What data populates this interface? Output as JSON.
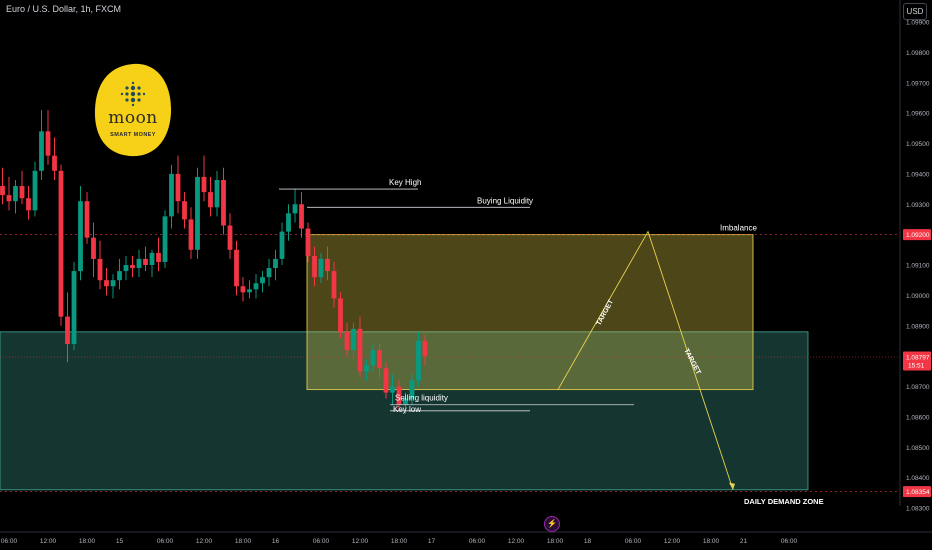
{
  "header": {
    "symbol_title": "Euro / U.S. Dollar, 1h, FXCM",
    "currency_label": "USD"
  },
  "logo": {
    "word": "moon",
    "subtitle": "SMART MONEY",
    "color": "#f7d117"
  },
  "chart_data": {
    "type": "candlestick",
    "instrument": "Euro / U.S. Dollar",
    "timeframe": "1h",
    "source": "FXCM",
    "y_axis": {
      "ticks": [
        1.083,
        1.084,
        1.085,
        1.086,
        1.087,
        1.088,
        1.089,
        1.09,
        1.091,
        1.092,
        1.093,
        1.094,
        1.095,
        1.096,
        1.097,
        1.098,
        1.099
      ],
      "labels": [
        "1.08300",
        "1.08400",
        "1.08500",
        "1.08600",
        "1.08700",
        "1.08800",
        "1.08900",
        "1.09000",
        "1.09100",
        "1.09200",
        "1.09300",
        "1.09400",
        "1.09500",
        "1.09600",
        "1.09700",
        "1.09800",
        "1.09900"
      ],
      "range": [
        1.0825,
        1.1
      ]
    },
    "x_axis": {
      "labels": [
        {
          "text": "06:00",
          "i": 2
        },
        {
          "text": "12:00",
          "i": 8
        },
        {
          "text": "18:00",
          "i": 14
        },
        {
          "text": "15",
          "i": 19
        },
        {
          "text": "06:00",
          "i": 26
        },
        {
          "text": "12:00",
          "i": 32
        },
        {
          "text": "18:00",
          "i": 38
        },
        {
          "text": "16",
          "i": 43
        },
        {
          "text": "06:00",
          "i": 50
        },
        {
          "text": "12:00",
          "i": 56
        },
        {
          "text": "18:00",
          "i": 62
        },
        {
          "text": "17",
          "i": 67
        },
        {
          "text": "06:00",
          "i": 74
        },
        {
          "text": "12:00",
          "i": 80
        },
        {
          "text": "18:00",
          "i": 86
        },
        {
          "text": "18",
          "i": 91
        },
        {
          "text": "06:00",
          "i": 98
        },
        {
          "text": "12:00",
          "i": 104
        },
        {
          "text": "18:00",
          "i": 110
        },
        {
          "text": "21",
          "i": 115
        },
        {
          "text": "06:00",
          "i": 122
        }
      ]
    },
    "candles": [
      [
        1.0936,
        1.0942,
        1.093,
        1.0933
      ],
      [
        1.0933,
        1.0939,
        1.0928,
        1.0931
      ],
      [
        1.0931,
        1.0938,
        1.0927,
        1.0936
      ],
      [
        1.0936,
        1.0941,
        1.093,
        1.0932
      ],
      [
        1.0932,
        1.0936,
        1.0925,
        1.0928
      ],
      [
        1.0928,
        1.0944,
        1.0926,
        1.0941
      ],
      [
        1.0941,
        1.0961,
        1.0938,
        1.0954
      ],
      [
        1.0954,
        1.0961,
        1.0943,
        1.0946
      ],
      [
        1.0946,
        1.0952,
        1.0938,
        1.0941
      ],
      [
        1.0941,
        1.0943,
        1.089,
        1.0893
      ],
      [
        1.0893,
        1.0901,
        1.0878,
        1.0884
      ],
      [
        1.0884,
        1.0911,
        1.0882,
        1.0908
      ],
      [
        1.0908,
        1.0936,
        1.0905,
        1.0931
      ],
      [
        1.0931,
        1.0934,
        1.0917,
        1.0919
      ],
      [
        1.0919,
        1.0924,
        1.0906,
        1.0912
      ],
      [
        1.0912,
        1.0918,
        1.0902,
        1.0905
      ],
      [
        1.0905,
        1.0909,
        1.09,
        1.0903
      ],
      [
        1.0903,
        1.0907,
        1.0899,
        1.0905
      ],
      [
        1.0905,
        1.0912,
        1.0902,
        1.0908
      ],
      [
        1.0908,
        1.0913,
        1.0905,
        1.091
      ],
      [
        1.091,
        1.0913,
        1.0906,
        1.0909
      ],
      [
        1.0909,
        1.0915,
        1.0906,
        1.0912
      ],
      [
        1.0912,
        1.0916,
        1.0908,
        1.091
      ],
      [
        1.091,
        1.0915,
        1.0906,
        1.0914
      ],
      [
        1.0914,
        1.0919,
        1.0908,
        1.0911
      ],
      [
        1.0911,
        1.0928,
        1.0909,
        1.0926
      ],
      [
        1.0926,
        1.0943,
        1.0922,
        1.094
      ],
      [
        1.094,
        1.0946,
        1.0927,
        1.0931
      ],
      [
        1.0931,
        1.0934,
        1.0922,
        1.0925
      ],
      [
        1.0925,
        1.0929,
        1.0912,
        1.0915
      ],
      [
        1.0915,
        1.0942,
        1.0912,
        1.0939
      ],
      [
        1.0939,
        1.0946,
        1.0931,
        1.0934
      ],
      [
        1.0934,
        1.0939,
        1.0926,
        1.0929
      ],
      [
        1.0929,
        1.0941,
        1.0926,
        1.0938
      ],
      [
        1.0938,
        1.0942,
        1.092,
        1.0923
      ],
      [
        1.0923,
        1.0927,
        1.0912,
        1.0915
      ],
      [
        1.0915,
        1.0918,
        1.09,
        1.0903
      ],
      [
        1.0903,
        1.0906,
        1.0898,
        1.0901
      ],
      [
        1.0901,
        1.0905,
        1.0899,
        1.0902
      ],
      [
        1.0902,
        1.0907,
        1.0899,
        1.0904
      ],
      [
        1.0904,
        1.0908,
        1.0901,
        1.0906
      ],
      [
        1.0906,
        1.0912,
        1.0903,
        1.0909
      ],
      [
        1.0909,
        1.0915,
        1.0905,
        1.0912
      ],
      [
        1.0912,
        1.0924,
        1.091,
        1.0921
      ],
      [
        1.0921,
        1.093,
        1.0918,
        1.0927
      ],
      [
        1.0927,
        1.0935,
        1.0924,
        1.093
      ],
      [
        1.093,
        1.0934,
        1.0919,
        1.0922
      ],
      [
        1.0922,
        1.0924,
        1.0911,
        1.0913
      ],
      [
        1.0913,
        1.0916,
        1.0903,
        1.0906
      ],
      [
        1.0906,
        1.0914,
        1.0904,
        1.0912
      ],
      [
        1.0912,
        1.0916,
        1.0905,
        1.0908
      ],
      [
        1.0908,
        1.0911,
        1.0896,
        1.0899
      ],
      [
        1.0899,
        1.0901,
        1.0886,
        1.0888
      ],
      [
        1.0888,
        1.0891,
        1.088,
        1.0882
      ],
      [
        1.0882,
        1.0891,
        1.0879,
        1.0889
      ],
      [
        1.0889,
        1.0893,
        1.0873,
        1.0875
      ],
      [
        1.0875,
        1.0879,
        1.0872,
        1.0877
      ],
      [
        1.0877,
        1.0884,
        1.0875,
        1.0882
      ],
      [
        1.0882,
        1.0884,
        1.0873,
        1.0876
      ],
      [
        1.0876,
        1.0878,
        1.0866,
        1.0868
      ],
      [
        1.0868,
        1.0874,
        1.0864,
        1.087
      ],
      [
        1.087,
        1.0872,
        1.0862,
        1.0864
      ],
      [
        1.0864,
        1.0868,
        1.0861,
        1.0866
      ],
      [
        1.0866,
        1.0874,
        1.0864,
        1.0872
      ],
      [
        1.0872,
        1.0888,
        1.087,
        1.0885
      ],
      [
        1.0885,
        1.0887,
        1.0877,
        1.088
      ]
    ],
    "candle_start_index": 0,
    "candle_start_x_index_offset": -1,
    "colors": {
      "up": "#089981",
      "down": "#f23645"
    },
    "last_price": {
      "value": "1.08797",
      "countdown": "15:51",
      "level": 1.08797,
      "color": "#f23645"
    },
    "levels": [
      {
        "value": "1.09200",
        "level": 1.092,
        "color": "#f23645"
      },
      {
        "value": "1.08354",
        "level": 1.08354,
        "color": "#f23645"
      }
    ],
    "annotations": {
      "key_high": "Key High",
      "buying_liquidity": "Buying Liquidity",
      "imbalance": "Imbalance",
      "selling_liquidity": "Selling liquidity",
      "key_low": "Key low",
      "target_up": "TARGET",
      "target_down": "TARGET",
      "demand_zone": "DAILY DEMAND ZONE"
    },
    "zones": {
      "imbalance_zone": {
        "top": 1.092,
        "bottom": 1.0869,
        "color": "#e8d44d"
      },
      "demand_zone": {
        "top": 1.0888,
        "bottom": 1.0836,
        "color": "#4bc0b0"
      }
    },
    "key_levels": {
      "key_high": 1.0935,
      "buying_liquidity": 1.0929,
      "selling_liquidity": 1.0864,
      "key_low": 1.0862
    },
    "projection": {
      "peak": 1.0921,
      "start": 1.0869,
      "end": 1.0836
    }
  }
}
